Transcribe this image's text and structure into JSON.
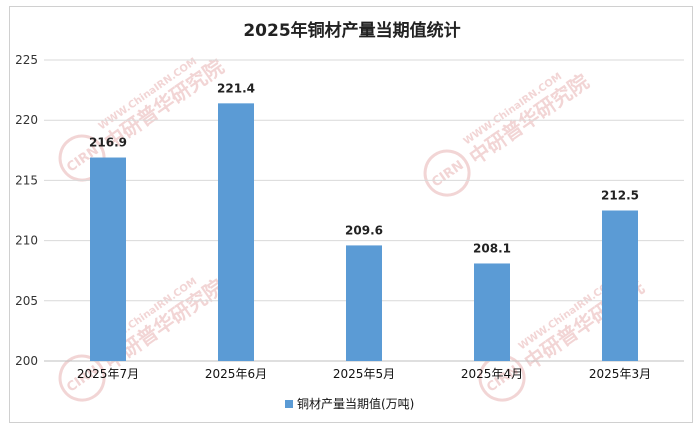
{
  "watermark": {
    "logo_text": "CIRN",
    "site_text": "WWW.ChinaIRN.COM",
    "cn_text": "中研普华研究院",
    "color": "#e8b4b4"
  },
  "chart_data": {
    "type": "bar",
    "title": "2025年铜材产量当期值统计",
    "categories": [
      "2025年7月",
      "2025年6月",
      "2025年5月",
      "2025年4月",
      "2025年3月"
    ],
    "series": [
      {
        "name": "铜材产量当期值(万吨)",
        "values": [
          216.9,
          221.4,
          209.6,
          208.1,
          212.5
        ],
        "color": "#5b9bd5"
      }
    ],
    "data_labels": [
      "216.9",
      "221.4",
      "209.6",
      "208.1",
      "212.5"
    ],
    "ylim": [
      200,
      225
    ],
    "yticks": [
      200,
      205,
      210,
      215,
      220,
      225
    ],
    "grid": true,
    "legend_position": "bottom",
    "xlabel": "",
    "ylabel": ""
  }
}
